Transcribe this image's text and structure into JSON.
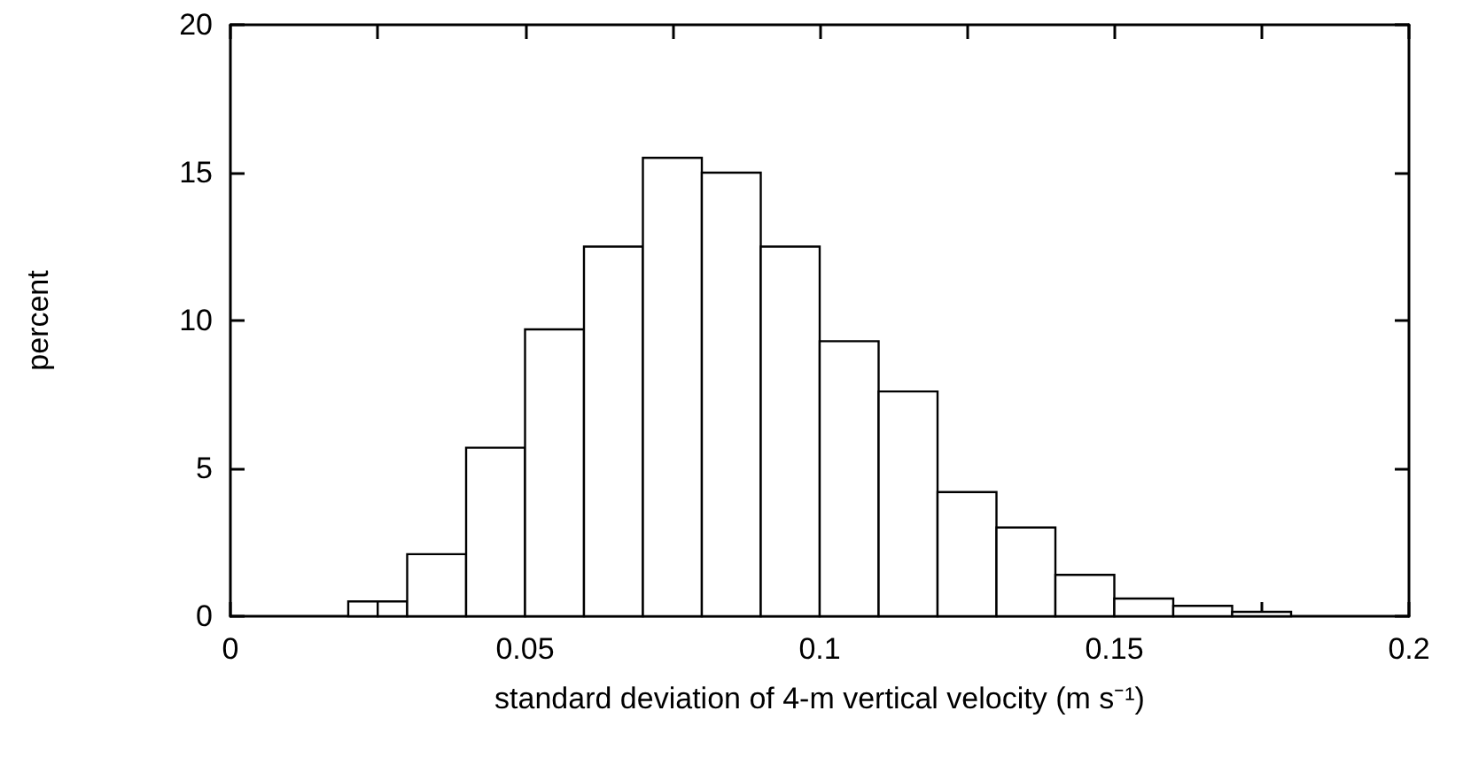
{
  "chart_data": {
    "type": "histogram",
    "xlabel": "standard deviation of 4-m vertical velocity (m s⁻¹)",
    "ylabel": "percent",
    "bins": [
      0.02,
      0.025,
      0.03,
      0.04,
      0.05,
      0.06,
      0.07,
      0.08,
      0.09,
      0.1,
      0.11,
      0.12,
      0.13,
      0.14,
      0.15,
      0.16,
      0.17,
      0.18
    ],
    "values": [
      0.5,
      0.5,
      2.1,
      5.7,
      9.7,
      12.5,
      15.5,
      15.0,
      12.5,
      9.3,
      7.6,
      4.2,
      3.0,
      1.4,
      0.6,
      0.35,
      0.15
    ],
    "color": "#ffffff",
    "xlim": [
      0,
      0.2
    ],
    "xticks": [
      0,
      {
        "value": 0.025,
        "label": null
      },
      0.05,
      {
        "value": 0.075,
        "label": null
      },
      0.1,
      {
        "value": 0.125,
        "label": null
      },
      0.15,
      {
        "value": 0.175,
        "label": null
      },
      0.2
    ],
    "ylim": [
      0,
      20
    ],
    "yticks": [
      0,
      5,
      10,
      15,
      20
    ]
  }
}
